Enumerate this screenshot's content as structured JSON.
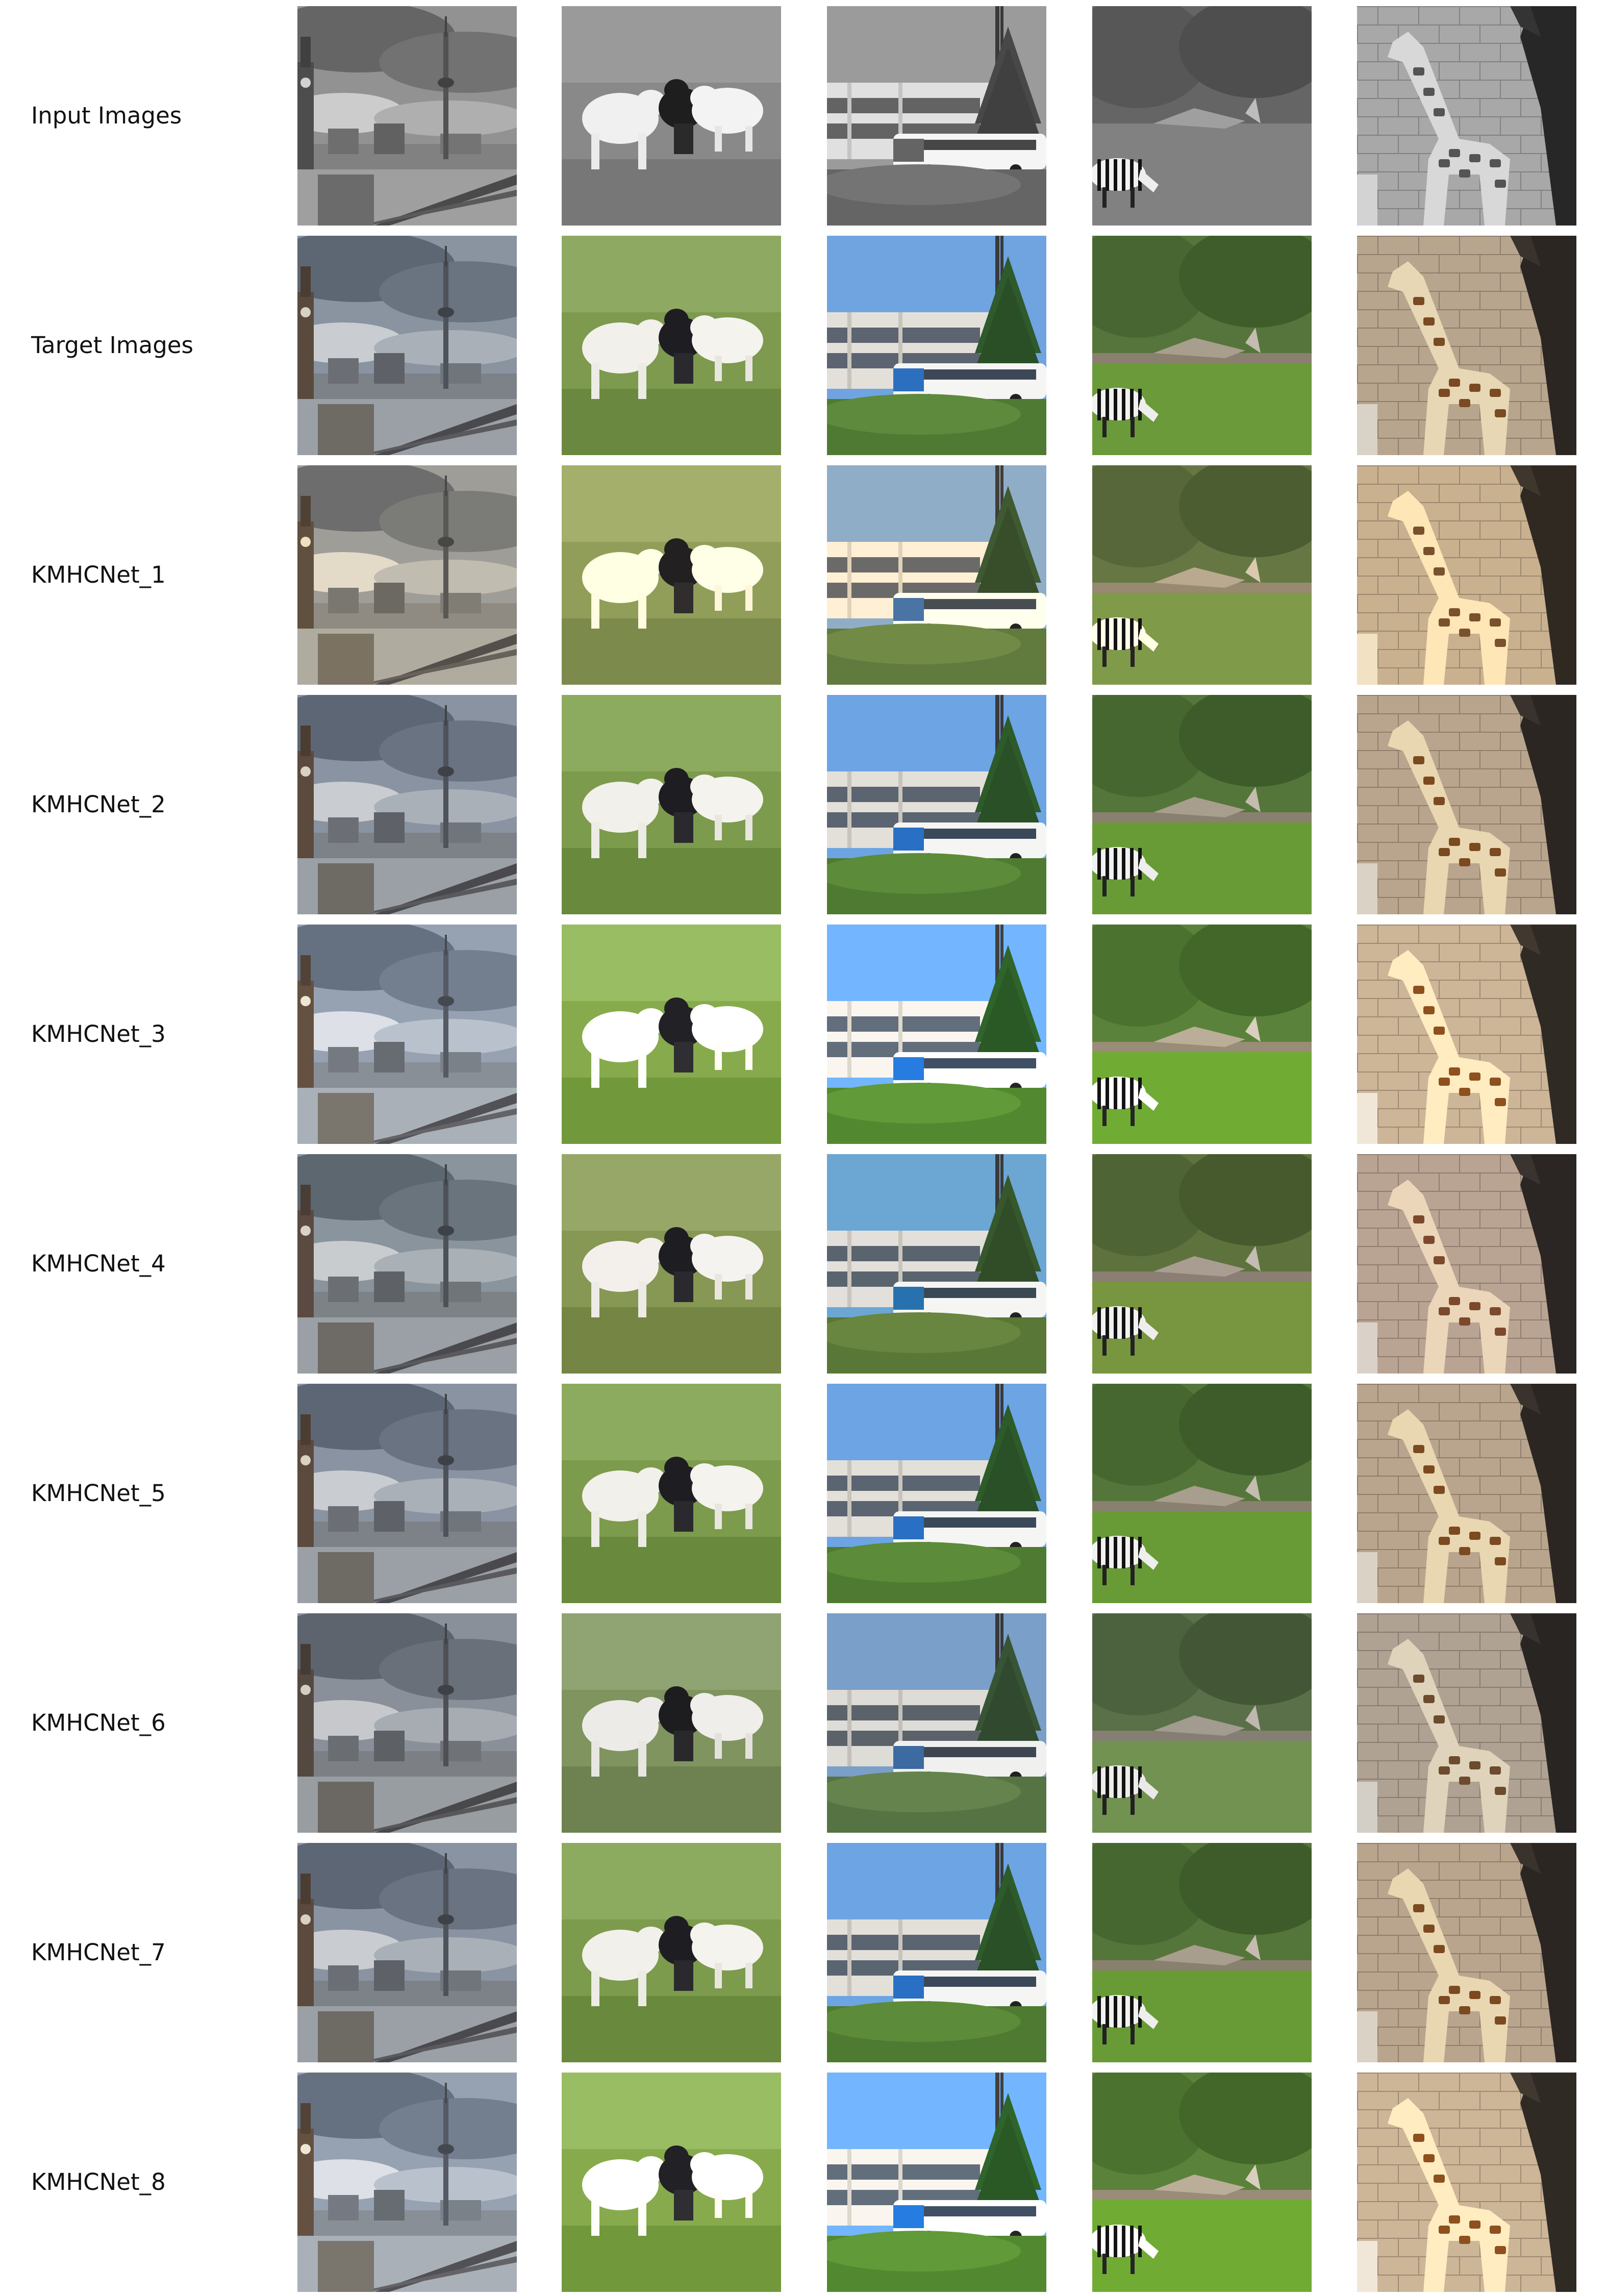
{
  "figure": {
    "rows": [
      {
        "label": "Input Images",
        "mode": "gray"
      },
      {
        "label": "Target Images",
        "mode": "target"
      },
      {
        "label": "KMHCNet_1",
        "mode": "warm"
      },
      {
        "label": "KMHCNet_2",
        "mode": "natural"
      },
      {
        "label": "KMHCNet_3",
        "mode": "bright"
      },
      {
        "label": "KMHCNet_4",
        "mode": "cool"
      },
      {
        "label": "KMHCNet_5",
        "mode": "natural"
      },
      {
        "label": "KMHCNet_6",
        "mode": "muted"
      },
      {
        "label": "KMHCNet_7",
        "mode": "natural"
      },
      {
        "label": "KMHCNet_8",
        "mode": "bright"
      }
    ],
    "columns": [
      {
        "scene": "tower",
        "icon": "city-tower-photo"
      },
      {
        "scene": "dogs",
        "icon": "dogs-on-grass-photo"
      },
      {
        "scene": "bus",
        "icon": "bus-and-building-photo"
      },
      {
        "scene": "zebra",
        "icon": "zebra-on-grass-photo"
      },
      {
        "scene": "giraffe",
        "icon": "giraffe-by-wall-photo"
      }
    ]
  }
}
